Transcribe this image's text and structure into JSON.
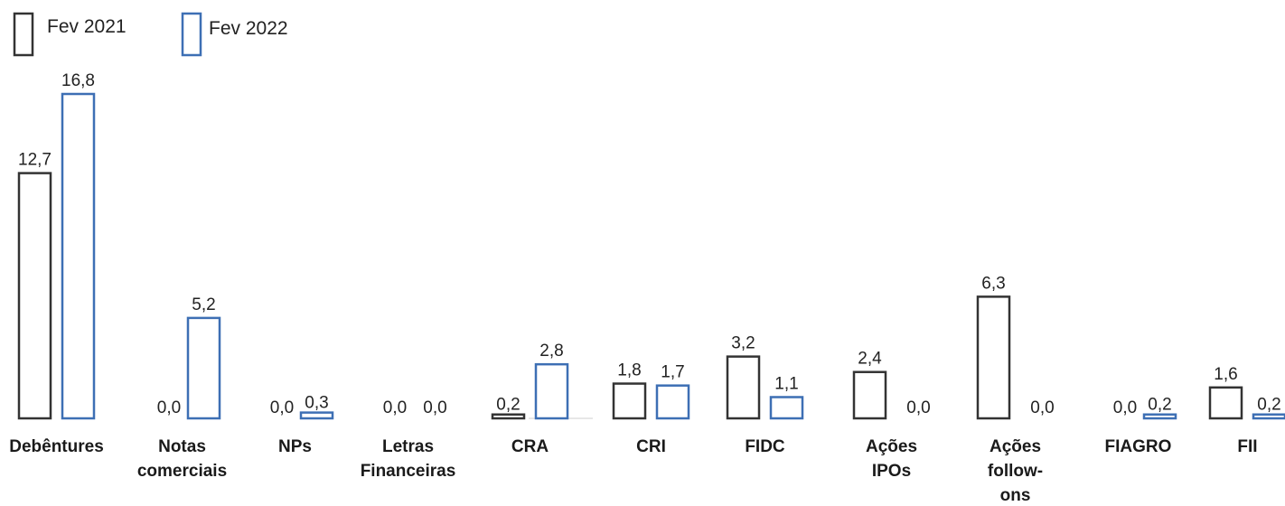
{
  "chart_data": {
    "type": "bar",
    "title": "",
    "xlabel": "",
    "ylabel": "",
    "categories": [
      [
        "Debêntures"
      ],
      [
        "Notas",
        "comerciais"
      ],
      [
        "NPs"
      ],
      [
        "Letras",
        "Financeiras"
      ],
      [
        "CRA"
      ],
      [
        "CRI"
      ],
      [
        "FIDC"
      ],
      [
        "Ações",
        "IPOs"
      ],
      [
        "Ações",
        "follow-",
        "ons"
      ],
      [
        "FIAGRO"
      ],
      [
        "FII"
      ]
    ],
    "series": [
      {
        "name": "Fev 2021",
        "color": "#333333",
        "values": [
          12.7,
          0.0,
          0.0,
          0.0,
          0.2,
          1.8,
          3.2,
          2.4,
          6.3,
          0.0,
          1.6
        ],
        "labels": [
          "12,7",
          "0,0",
          "0,0",
          "0,0",
          "0,2",
          "1,8",
          "3,2",
          "2,4",
          "6,3",
          "0,0",
          "1,6"
        ]
      },
      {
        "name": "Fev 2022",
        "color": "#3d6fb4",
        "values": [
          16.8,
          5.2,
          0.3,
          0.0,
          2.8,
          1.7,
          1.1,
          0.0,
          0.0,
          0.2,
          0.2
        ],
        "labels": [
          "16,8",
          "5,2",
          "0,3",
          "0,0",
          "2,8",
          "1,7",
          "1,1",
          "0,0",
          "0,0",
          "0,2",
          "0,2"
        ]
      }
    ],
    "ylim": [
      0,
      16.8
    ],
    "grid": false,
    "legend_position": "top-left"
  }
}
